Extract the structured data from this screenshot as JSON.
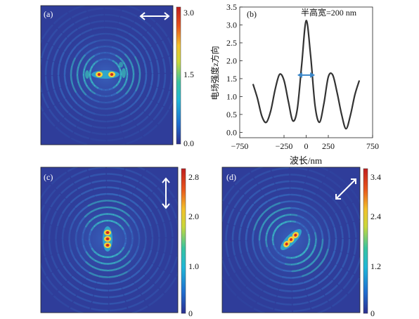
{
  "panels": {
    "a": {
      "label": "(a)",
      "cbar_ticks": [
        "3.0",
        "1.5",
        "0.0"
      ],
      "arrow": "horizontal-double-arrow"
    },
    "c": {
      "label": "(c)",
      "cbar_ticks": [
        "2.8",
        "2.0",
        "1.0",
        "0"
      ],
      "arrow": "vertical-double-arrow"
    },
    "d": {
      "label": "(d)",
      "cbar_ticks": [
        "3.4",
        "2.4",
        "1.2",
        "0"
      ],
      "arrow": "diagonal-double-arrow"
    }
  },
  "colors": {
    "map_background": "#2f3d9a",
    "colormap": [
      "#2b2f8f",
      "#1f6fd0",
      "#1fb7d8",
      "#37c4a0",
      "#c9d83a",
      "#f3c12a",
      "#e8541c",
      "#c01e1e"
    ],
    "curve": "#333333",
    "fwhm_arrow": "#3a86c8",
    "annotation_arrow": "#ffffff"
  },
  "chart_data": [
    {
      "type": "line",
      "panel": "(b)",
      "annotation": "半高宽=200 nm",
      "xlabel": "波长/nm",
      "ylabel": "电场强度z方向",
      "xlim": [
        -750,
        750
      ],
      "ylim": [
        -0.15,
        3.5
      ],
      "xticks": [
        -750,
        -250,
        0,
        250,
        750
      ],
      "yticks": [
        0.0,
        0.5,
        1.0,
        1.5,
        2.0,
        2.5,
        3.0,
        3.5
      ],
      "x": [
        -600,
        -550,
        -500,
        -450,
        -400,
        -350,
        -300,
        -250,
        -200,
        -150,
        -100,
        -50,
        0,
        50,
        100,
        150,
        200,
        250,
        300,
        350,
        400,
        450,
        500,
        550,
        600
      ],
      "y": [
        1.35,
        0.95,
        0.45,
        0.28,
        0.6,
        1.2,
        1.62,
        1.45,
        0.85,
        0.32,
        0.65,
        1.9,
        3.12,
        2.15,
        0.75,
        0.28,
        0.8,
        1.55,
        1.6,
        1.1,
        0.5,
        0.1,
        0.48,
        1.05,
        1.45
      ],
      "fwhm_arrow_range": [
        -100,
        100
      ],
      "fwhm_arrow_y": 1.6
    },
    {
      "type": "heatmap",
      "panel": "(a)",
      "colorbar_range": [
        0.0,
        3.0
      ],
      "hotspot": "horizontal dipole"
    },
    {
      "type": "heatmap",
      "panel": "(c)",
      "colorbar_range": [
        0,
        2.8
      ],
      "hotspot": "vertical dipole"
    },
    {
      "type": "heatmap",
      "panel": "(d)",
      "colorbar_range": [
        0,
        3.4
      ],
      "hotspot": "diagonal dipole"
    }
  ]
}
